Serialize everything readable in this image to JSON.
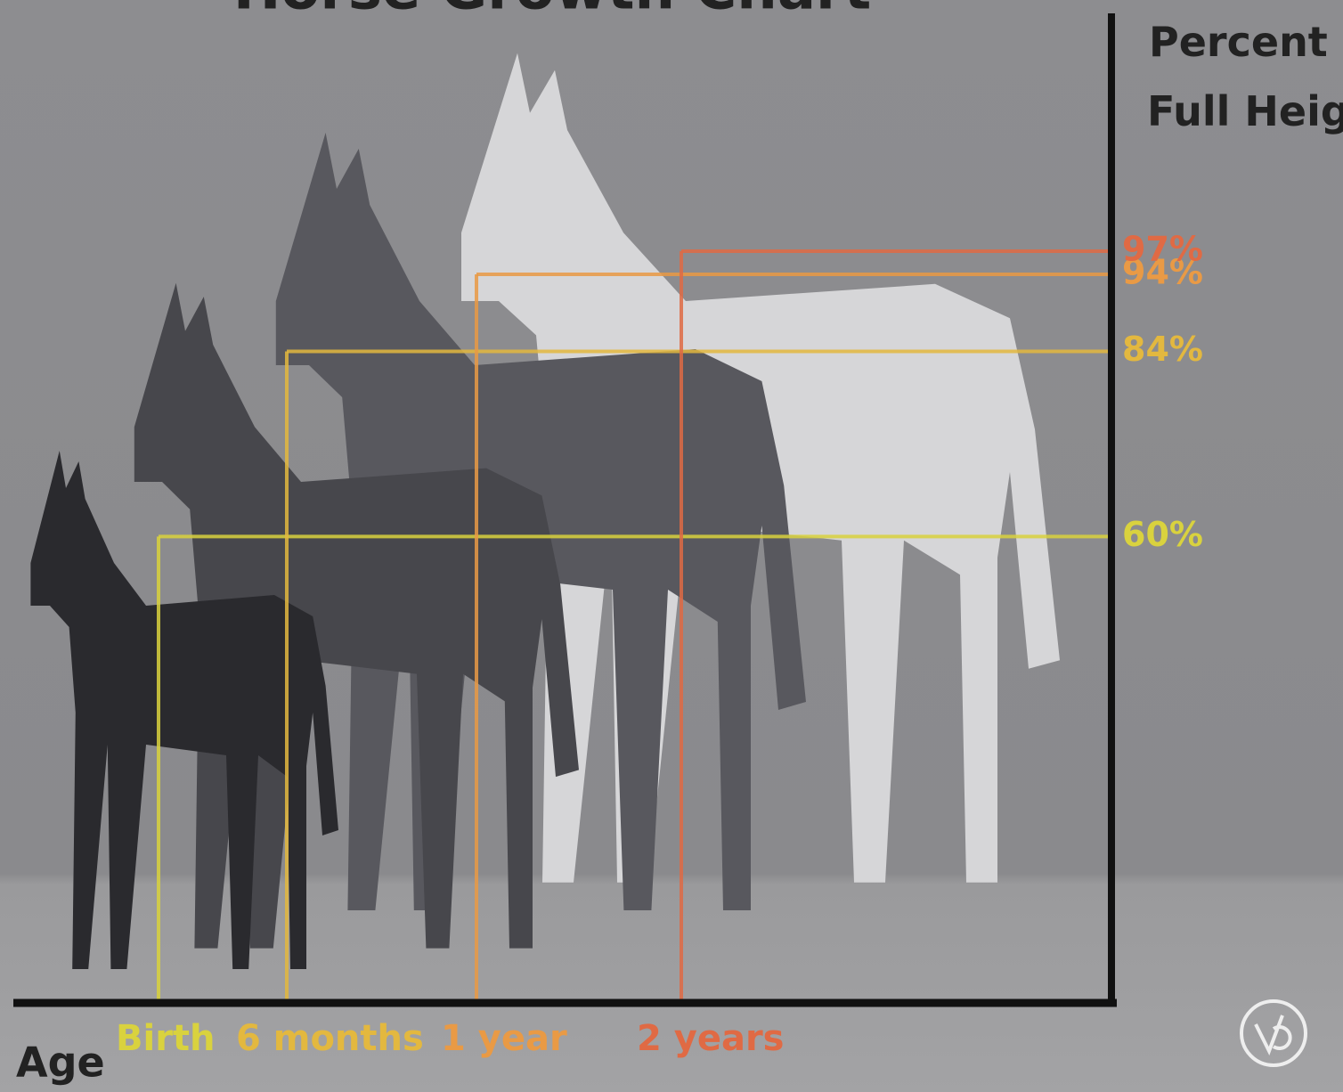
{
  "chart_data": {
    "type": "growth",
    "title": "Horse Growth Chart",
    "y_label": "Percent of Full Height",
    "x_label": "Age",
    "categories": [
      "Birth",
      "6 months",
      "1 year",
      "2 years"
    ],
    "values": [
      60,
      84,
      94,
      97
    ],
    "value_labels": [
      "60%",
      "84%",
      "94%",
      "97%"
    ],
    "colors": [
      "#d9d23e",
      "#e3b83f",
      "#e99a45",
      "#e06a44"
    ]
  }
}
